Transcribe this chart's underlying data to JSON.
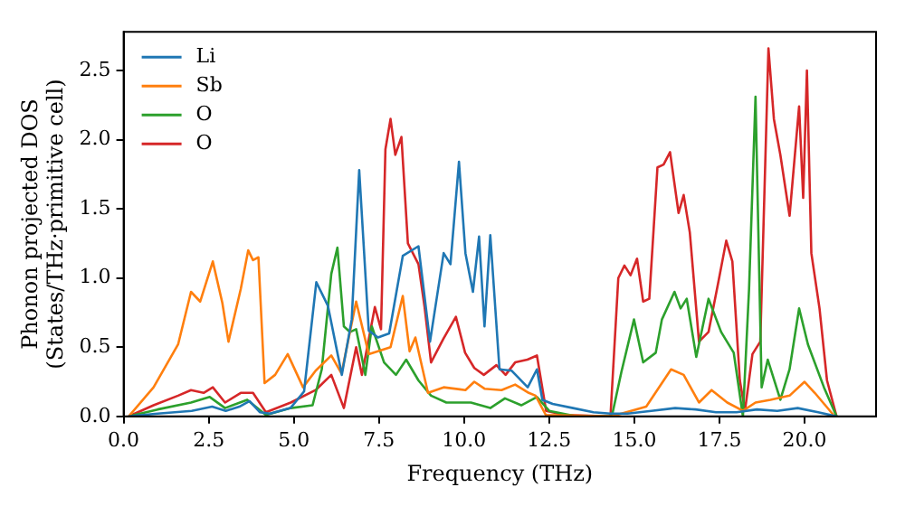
{
  "chart_data": {
    "type": "line",
    "xlabel": "Frequency (THz)",
    "ylabel": "Phonon projected DOS\n(States/THz·primitive cell)",
    "xlim": [
      0,
      22.1
    ],
    "ylim": [
      0,
      2.78
    ],
    "xticks": [
      {
        "value": 0,
        "label": "0.0"
      },
      {
        "value": 2.5,
        "label": "2.5"
      },
      {
        "value": 5,
        "label": "5.0"
      },
      {
        "value": 7.5,
        "label": "7.5"
      },
      {
        "value": 10,
        "label": "10.0"
      },
      {
        "value": 12.5,
        "label": "12.5"
      },
      {
        "value": 15,
        "label": "15.0"
      },
      {
        "value": 17.5,
        "label": "17.5"
      },
      {
        "value": 20,
        "label": "20.0"
      }
    ],
    "yticks": [
      {
        "value": 0,
        "label": "0.0"
      },
      {
        "value": 0.5,
        "label": "0.5"
      },
      {
        "value": 1,
        "label": "1.0"
      },
      {
        "value": 1.5,
        "label": "1.5"
      },
      {
        "value": 2,
        "label": "2.0"
      },
      {
        "value": 2.5,
        "label": "2.5"
      }
    ],
    "legend": "top left",
    "grid": false,
    "series": [
      {
        "name": "Li",
        "color": "#1f77b4",
        "x": [
          0.15,
          1.0,
          2.0,
          2.6,
          3.0,
          3.4,
          3.7,
          4.0,
          4.3,
          4.9,
          5.3,
          5.66,
          6.0,
          6.41,
          6.7,
          6.92,
          7.2,
          7.47,
          7.8,
          8.2,
          8.66,
          9.0,
          9.4,
          9.6,
          9.85,
          10.04,
          10.26,
          10.44,
          10.6,
          10.77,
          11.04,
          11.4,
          11.87,
          12.14,
          12.3,
          12.6,
          13.2,
          13.8,
          14.3,
          14.8,
          15.5,
          16.2,
          16.8,
          17.4,
          18.0,
          18.6,
          19.2,
          19.8,
          20.4,
          20.94
        ],
        "values": [
          0,
          0.02,
          0.04,
          0.07,
          0.04,
          0.07,
          0.11,
          0.03,
          0.02,
          0.06,
          0.18,
          0.97,
          0.8,
          0.3,
          0.7,
          1.78,
          0.62,
          0.57,
          0.6,
          1.16,
          1.23,
          0.54,
          1.18,
          1.1,
          1.84,
          1.18,
          0.9,
          1.3,
          0.65,
          1.31,
          0.34,
          0.33,
          0.21,
          0.34,
          0.12,
          0.09,
          0.06,
          0.03,
          0.02,
          0.02,
          0.04,
          0.06,
          0.05,
          0.03,
          0.03,
          0.05,
          0.04,
          0.06,
          0.03,
          0
        ]
      },
      {
        "name": "Sb",
        "color": "#ff7f0e",
        "x": [
          0.15,
          0.88,
          1.6,
          1.98,
          2.25,
          2.62,
          2.9,
          3.08,
          3.44,
          3.66,
          3.8,
          3.96,
          4.14,
          4.45,
          4.82,
          5.27,
          5.64,
          6.1,
          6.4,
          6.83,
          7.2,
          7.84,
          8.2,
          8.4,
          8.57,
          8.94,
          9.4,
          10.04,
          10.3,
          10.6,
          11.1,
          11.5,
          11.9,
          12.1,
          12.4,
          14.34,
          15.35,
          16.08,
          16.45,
          16.9,
          17.27,
          17.73,
          18.19,
          18.56,
          19.0,
          19.56,
          20.0,
          20.3,
          20.85
        ],
        "values": [
          0,
          0.21,
          0.52,
          0.9,
          0.83,
          1.12,
          0.82,
          0.54,
          0.92,
          1.2,
          1.13,
          1.15,
          0.24,
          0.3,
          0.45,
          0.21,
          0.33,
          0.44,
          0.31,
          0.83,
          0.45,
          0.5,
          0.87,
          0.47,
          0.57,
          0.17,
          0.21,
          0.19,
          0.25,
          0.2,
          0.19,
          0.23,
          0.17,
          0.15,
          0.01,
          0,
          0.07,
          0.34,
          0.3,
          0.1,
          0.19,
          0.1,
          0.04,
          0.1,
          0.12,
          0.15,
          0.25,
          0.17,
          0.01
        ]
      },
      {
        "name": "O",
        "color": "#2ca02c",
        "x": [
          0.15,
          1.0,
          1.98,
          2.53,
          2.98,
          3.63,
          4.18,
          4.91,
          5.55,
          5.82,
          6.1,
          6.28,
          6.47,
          6.65,
          6.83,
          7.1,
          7.29,
          7.65,
          8.0,
          8.3,
          8.66,
          9.03,
          9.48,
          10.2,
          10.77,
          11.2,
          11.68,
          12.14,
          12.5,
          13.3,
          14.34,
          14.62,
          14.99,
          15.26,
          15.63,
          15.81,
          16.18,
          16.36,
          16.54,
          16.82,
          17.18,
          17.55,
          17.92,
          18.19,
          18.37,
          18.56,
          18.74,
          18.92,
          19.29,
          19.56,
          19.84,
          20.1,
          20.57,
          20.94
        ],
        "values": [
          0,
          0.05,
          0.1,
          0.14,
          0.06,
          0.12,
          0.01,
          0.06,
          0.08,
          0.34,
          1.03,
          1.22,
          0.65,
          0.61,
          0.63,
          0.3,
          0.65,
          0.39,
          0.3,
          0.41,
          0.26,
          0.15,
          0.1,
          0.1,
          0.06,
          0.13,
          0.08,
          0.14,
          0.04,
          0,
          0,
          0.32,
          0.7,
          0.39,
          0.46,
          0.7,
          0.9,
          0.78,
          0.85,
          0.43,
          0.85,
          0.61,
          0.46,
          0,
          0.92,
          2.31,
          0.21,
          0.41,
          0.12,
          0.34,
          0.78,
          0.52,
          0.21,
          0
        ]
      },
      {
        "name": "O",
        "color": "#d62728",
        "x": [
          0.15,
          0.88,
          1.6,
          1.98,
          2.35,
          2.62,
          2.98,
          3.44,
          3.8,
          4.18,
          4.91,
          5.64,
          6.1,
          6.47,
          6.83,
          7.0,
          7.38,
          7.56,
          7.69,
          7.84,
          7.98,
          8.16,
          8.35,
          8.66,
          8.84,
          9.03,
          9.39,
          9.76,
          10.03,
          10.3,
          10.58,
          10.95,
          11.22,
          11.5,
          11.86,
          12.14,
          12.41,
          12.96,
          14.3,
          14.53,
          14.71,
          14.89,
          15.08,
          15.26,
          15.44,
          15.68,
          15.86,
          16.05,
          16.3,
          16.45,
          16.63,
          16.9,
          17.18,
          17.46,
          17.7,
          17.88,
          18.1,
          18.25,
          18.47,
          18.7,
          18.94,
          19.1,
          19.29,
          19.56,
          19.84,
          19.96,
          20.07,
          20.2,
          20.44,
          20.66,
          20.94
        ],
        "values": [
          0,
          0.08,
          0.15,
          0.19,
          0.17,
          0.21,
          0.1,
          0.17,
          0.17,
          0.03,
          0.1,
          0.19,
          0.3,
          0.06,
          0.5,
          0.3,
          0.79,
          0.63,
          1.93,
          2.15,
          1.89,
          2.02,
          1.25,
          1.1,
          0.79,
          0.39,
          0.56,
          0.72,
          0.46,
          0.35,
          0.3,
          0.37,
          0.3,
          0.39,
          0.41,
          0.44,
          0.04,
          0.01,
          0,
          1.0,
          1.09,
          1.02,
          1.14,
          0.83,
          0.85,
          1.8,
          1.82,
          1.91,
          1.47,
          1.6,
          1.33,
          0.54,
          0.61,
          0.96,
          1.27,
          1.12,
          0.26,
          0.04,
          0.45,
          0.54,
          2.66,
          2.15,
          1.89,
          1.45,
          2.24,
          1.58,
          2.5,
          1.18,
          0.78,
          0.26,
          0
        ]
      }
    ]
  }
}
